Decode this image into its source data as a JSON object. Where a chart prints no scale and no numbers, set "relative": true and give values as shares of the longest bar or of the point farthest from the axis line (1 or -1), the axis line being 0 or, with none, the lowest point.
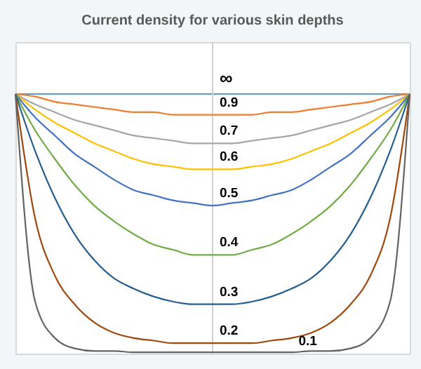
{
  "chart_data": {
    "type": "line",
    "title": "Current density for various skin depths",
    "relative": true,
    "marker": "none",
    "line_style": "solid",
    "categories": [
      null,
      null,
      null,
      null,
      null,
      null,
      null,
      null,
      null,
      null,
      null,
      null,
      null,
      null,
      null,
      null,
      null,
      null,
      null,
      null,
      null
    ],
    "series": [
      {
        "name": "∞",
        "color": "#5b9bd5",
        "values": [
          1,
          1,
          1,
          1,
          1,
          1,
          1,
          1,
          1,
          1,
          1,
          1,
          1,
          1,
          1,
          1,
          1,
          1,
          1,
          1,
          1
        ]
      },
      {
        "name": "0.9",
        "color": "#ed7d31",
        "values": [
          1,
          0.99,
          0.97,
          0.96,
          0.95,
          0.94,
          0.93,
          0.93,
          0.92,
          0.92,
          0.92,
          0.92,
          0.92,
          0.93,
          0.93,
          0.94,
          0.95,
          0.96,
          0.97,
          0.99,
          1
        ]
      },
      {
        "name": "0.7",
        "color": "#a5a5a5",
        "values": [
          1,
          0.96,
          0.93,
          0.9,
          0.88,
          0.86,
          0.84,
          0.83,
          0.82,
          0.81,
          0.81,
          0.81,
          0.82,
          0.83,
          0.84,
          0.86,
          0.88,
          0.9,
          0.93,
          0.96,
          1
        ]
      },
      {
        "name": "0.6",
        "color": "#ffc000",
        "values": [
          1,
          0.94,
          0.89,
          0.85,
          0.81,
          0.78,
          0.75,
          0.73,
          0.72,
          0.71,
          0.71,
          0.71,
          0.72,
          0.73,
          0.75,
          0.78,
          0.81,
          0.85,
          0.89,
          0.94,
          1
        ]
      },
      {
        "name": "0.5",
        "color": "#4472c4",
        "values": [
          1,
          0.91,
          0.84,
          0.77,
          0.72,
          0.67,
          0.63,
          0.61,
          0.59,
          0.58,
          0.57,
          0.58,
          0.59,
          0.61,
          0.63,
          0.67,
          0.72,
          0.77,
          0.84,
          0.91,
          1
        ]
      },
      {
        "name": "0.4",
        "color": "#70ad47",
        "values": [
          1,
          0.86,
          0.75,
          0.65,
          0.57,
          0.51,
          0.46,
          0.42,
          0.4,
          0.38,
          0.38,
          0.38,
          0.4,
          0.42,
          0.46,
          0.51,
          0.57,
          0.65,
          0.75,
          0.86,
          1
        ]
      },
      {
        "name": "0.3",
        "color": "#255e91",
        "values": [
          1,
          0.78,
          0.6,
          0.46,
          0.36,
          0.29,
          0.25,
          0.22,
          0.2,
          0.19,
          0.19,
          0.19,
          0.2,
          0.22,
          0.25,
          0.29,
          0.36,
          0.46,
          0.6,
          0.78,
          1
        ]
      },
      {
        "name": "0.2",
        "color": "#9e480e",
        "values": [
          1,
          0.52,
          0.3,
          0.19,
          0.12,
          0.08,
          0.06,
          0.05,
          0.04,
          0.04,
          0.04,
          0.04,
          0.04,
          0.05,
          0.06,
          0.08,
          0.12,
          0.19,
          0.3,
          0.52,
          1
        ]
      },
      {
        "name": "0.1",
        "color": "#636363",
        "values": [
          1,
          0.2,
          0.06,
          0.02,
          0.01,
          0.01,
          0.005,
          0.005,
          0.005,
          0.005,
          0.005,
          0.005,
          0.005,
          0.005,
          0.005,
          0.01,
          0.01,
          0.02,
          0.06,
          0.2,
          1
        ]
      }
    ]
  }
}
